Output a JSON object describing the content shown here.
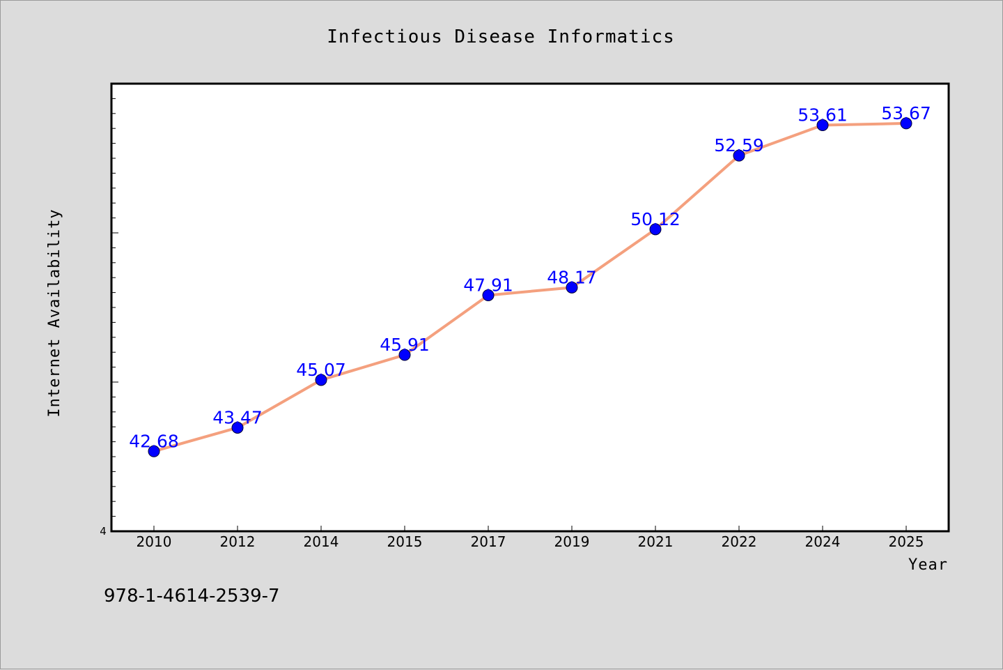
{
  "figure_id": "978-1-4614-2539-7",
  "chart_data": {
    "type": "line",
    "title": "Infectious Disease Informatics",
    "xlabel": "Year",
    "ylabel": "Internet Availability",
    "categories": [
      "2010",
      "2012",
      "2014",
      "2015",
      "2017",
      "2019",
      "2021",
      "2022",
      "2024",
      "2025"
    ],
    "series": [
      {
        "values": [
          42.68,
          43.47,
          45.07,
          45.91,
          47.91,
          48.17,
          50.12,
          52.59,
          53.61,
          53.67
        ],
        "line_color": "#f4a07e",
        "marker_color": "#0000ff"
      }
    ],
    "y_tick_labels": [
      "4"
    ],
    "ylim": [
      40,
      55
    ],
    "grid": false,
    "legend": "none"
  }
}
